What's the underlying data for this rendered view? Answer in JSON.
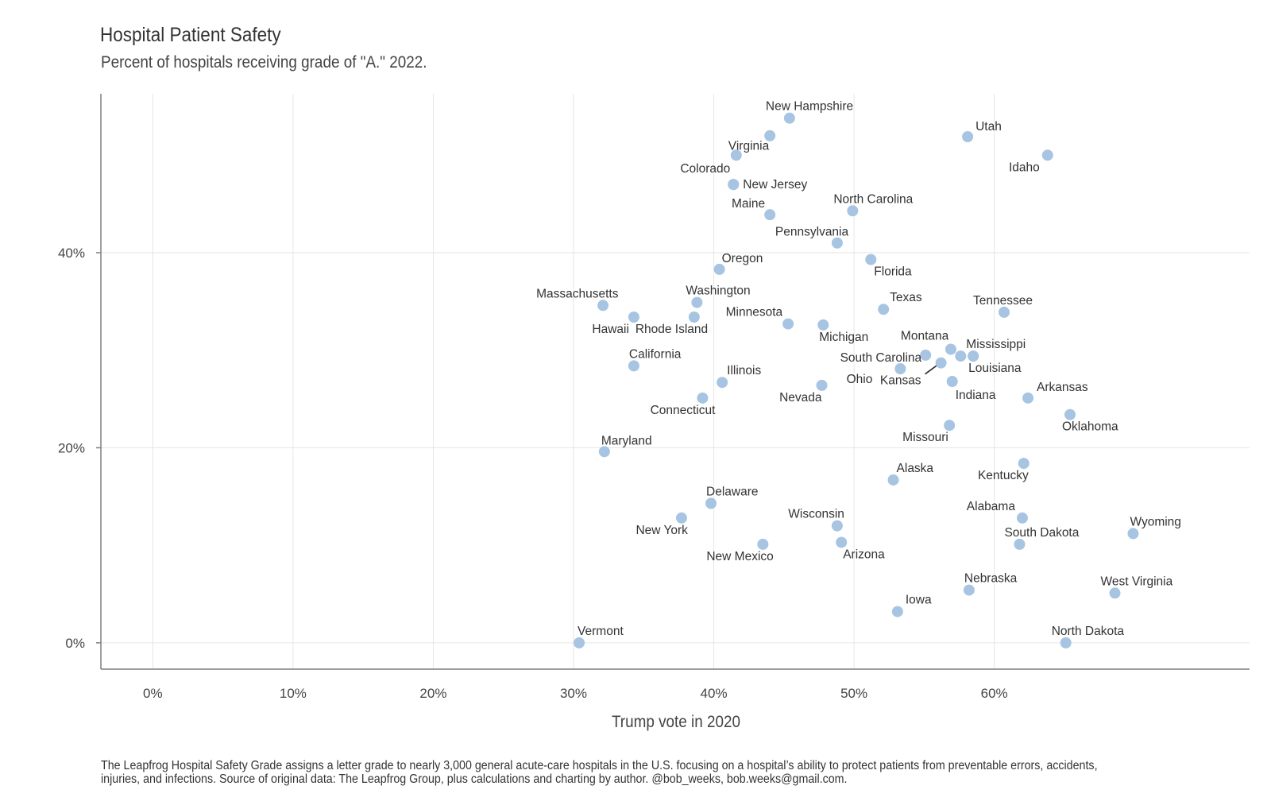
{
  "header": {
    "title": "Hospital Patient Safety",
    "subtitle": "Percent of hospitals receiving grade of \"A.\" 2022."
  },
  "caption": "The Leapfrog Hospital Safety Grade assigns a letter grade to nearly 3,000 general acute-care hospitals in the U.S. focusing on a hospital’s ability to protect patients from preventable errors, accidents, injuries, and infections. Source of original data: The Leapfrog Group, plus calculations and charting by author. @bob_weeks, bob.weeks@gmail.com.",
  "colors": {
    "point": "#a7c4e2",
    "grid": "#e6e6e6",
    "axis": "#7f7f7f",
    "text": "#333333"
  },
  "chart_data": {
    "type": "scatter",
    "title": "Hospital Patient Safety",
    "subtitle": "Percent of hospitals receiving grade of \"A.\" 2022.",
    "xlabel": "Trump vote in 2020",
    "ylabel": "",
    "xlim": [
      -3.7,
      78.2
    ],
    "ylim": [
      -2.7,
      56.3
    ],
    "x_ticks": [
      0,
      10,
      20,
      30,
      40,
      50,
      60
    ],
    "x_tick_labels": [
      "0%",
      "10%",
      "20%",
      "30%",
      "40%",
      "50%",
      "60%"
    ],
    "y_ticks": [
      0,
      20,
      40
    ],
    "y_tick_labels": [
      "0%",
      "20%",
      "40%"
    ],
    "grid": true,
    "legend": "none",
    "points": [
      {
        "label": "New Hampshire",
        "x": 45.4,
        "y": 53.8
      },
      {
        "label": "",
        "x": 44.0,
        "y": 52.0
      },
      {
        "label": "Utah",
        "x": 58.1,
        "y": 51.9
      },
      {
        "label": "Virginia",
        "x": 41.6,
        "y": 50.0
      },
      {
        "label": "Idaho",
        "x": 63.8,
        "y": 50.0
      },
      {
        "label": "Colorado",
        "x": 41.4,
        "y": 47.0
      },
      {
        "label": "New Jersey",
        "x": 41.4,
        "y": 47.0
      },
      {
        "label": "Maine",
        "x": 44.0,
        "y": 43.9
      },
      {
        "label": "North Carolina",
        "x": 49.9,
        "y": 44.3
      },
      {
        "label": "Pennsylvania",
        "x": 48.8,
        "y": 41.0
      },
      {
        "label": "Florida",
        "x": 51.2,
        "y": 39.3
      },
      {
        "label": "Oregon",
        "x": 40.4,
        "y": 38.3
      },
      {
        "label": "Washington",
        "x": 38.8,
        "y": 34.9
      },
      {
        "label": "Massachusetts",
        "x": 32.1,
        "y": 34.6
      },
      {
        "label": "Texas",
        "x": 52.1,
        "y": 34.2
      },
      {
        "label": "Tennessee",
        "x": 60.7,
        "y": 33.9
      },
      {
        "label": "Hawaii",
        "x": 34.3,
        "y": 33.4
      },
      {
        "label": "Rhode Island",
        "x": 38.6,
        "y": 33.4
      },
      {
        "label": "Minnesota",
        "x": 45.3,
        "y": 32.7
      },
      {
        "label": "Michigan",
        "x": 47.8,
        "y": 32.6
      },
      {
        "label": "Montana",
        "x": 56.9,
        "y": 30.1
      },
      {
        "label": "Mississippi",
        "x": 57.6,
        "y": 29.4
      },
      {
        "label": "",
        "x": 58.5,
        "y": 29.4
      },
      {
        "label": "South Carolina",
        "x": 55.1,
        "y": 29.5
      },
      {
        "label": "Louisiana",
        "x": 58.5,
        "y": 29.4
      },
      {
        "label": "Kansas",
        "x": 56.2,
        "y": 28.7
      },
      {
        "label": "Ohio",
        "x": 53.3,
        "y": 28.1
      },
      {
        "label": "California",
        "x": 34.3,
        "y": 28.4
      },
      {
        "label": "Indiana",
        "x": 57.0,
        "y": 26.8
      },
      {
        "label": "Illinois",
        "x": 40.6,
        "y": 26.7
      },
      {
        "label": "Nevada",
        "x": 47.7,
        "y": 26.4
      },
      {
        "label": "Arkansas",
        "x": 62.4,
        "y": 25.1
      },
      {
        "label": "Connecticut",
        "x": 39.2,
        "y": 25.1
      },
      {
        "label": "Oklahoma",
        "x": 65.4,
        "y": 23.4
      },
      {
        "label": "Missouri",
        "x": 56.8,
        "y": 22.3
      },
      {
        "label": "Maryland",
        "x": 32.2,
        "y": 19.6
      },
      {
        "label": "Kentucky",
        "x": 62.1,
        "y": 18.4
      },
      {
        "label": "Alaska",
        "x": 52.8,
        "y": 16.7
      },
      {
        "label": "Delaware",
        "x": 39.8,
        "y": 14.3
      },
      {
        "label": "New York",
        "x": 37.7,
        "y": 12.8
      },
      {
        "label": "Alabama",
        "x": 62.0,
        "y": 12.8
      },
      {
        "label": "Wisconsin",
        "x": 48.8,
        "y": 12.0
      },
      {
        "label": "Wyoming",
        "x": 69.9,
        "y": 11.2
      },
      {
        "label": "New Mexico",
        "x": 43.5,
        "y": 10.1
      },
      {
        "label": "Arizona",
        "x": 49.1,
        "y": 10.3
      },
      {
        "label": "South Dakota",
        "x": 61.8,
        "y": 10.1
      },
      {
        "label": "Nebraska",
        "x": 58.2,
        "y": 5.4
      },
      {
        "label": "West Virginia",
        "x": 68.6,
        "y": 5.1
      },
      {
        "label": "Iowa",
        "x": 53.1,
        "y": 3.2
      },
      {
        "label": "Vermont",
        "x": 30.4,
        "y": 0.0
      },
      {
        "label": "North Dakota",
        "x": 65.1,
        "y": 0.0
      }
    ]
  }
}
